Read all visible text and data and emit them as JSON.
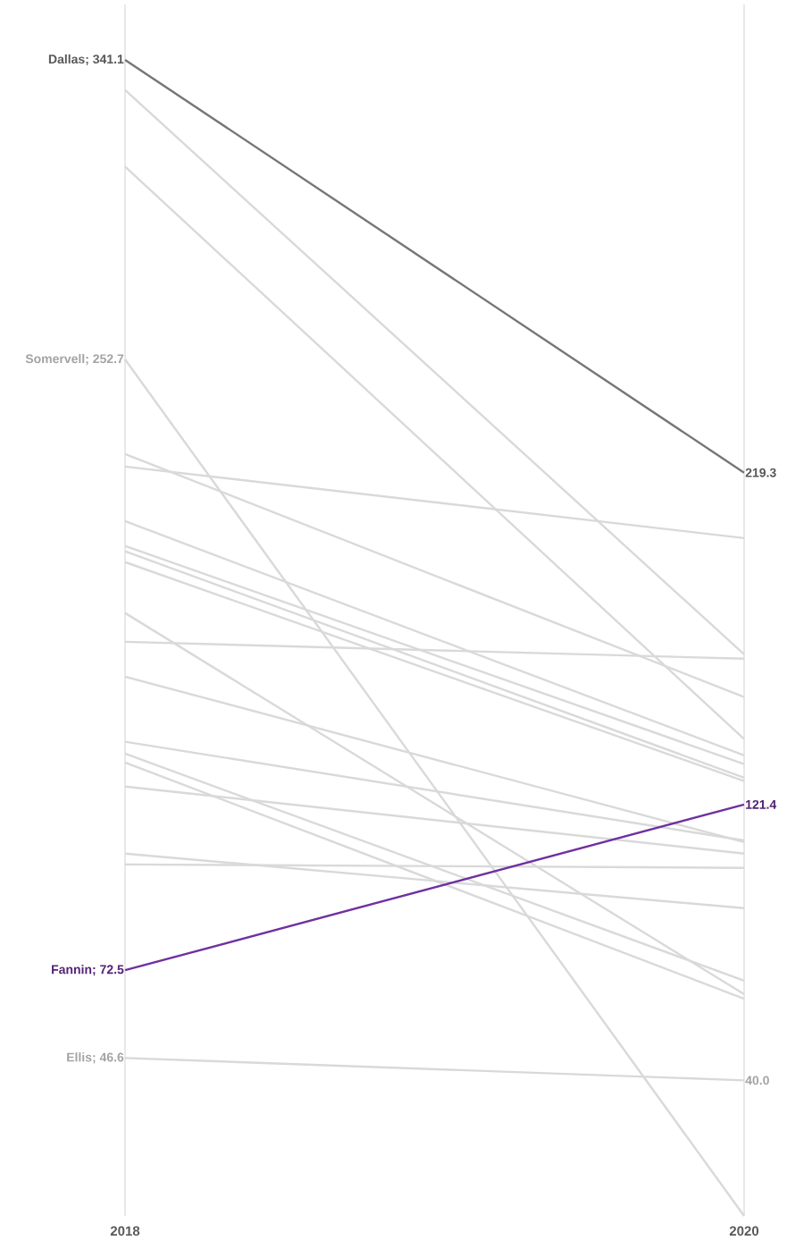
{
  "chart_data": {
    "type": "line",
    "categories": [
      "2018",
      "2020"
    ],
    "grid": "x",
    "series": [
      {
        "color": "#767676",
        "values": [
          341.1,
          219.3
        ],
        "value_labels": [
          "Dallas; 341.1",
          "219.3"
        ]
      },
      {
        "color": "#d9d9d9",
        "values": [
          332.2,
          165.7
        ]
      },
      {
        "color": "#d9d9d9",
        "values": [
          309.6,
          140.7
        ]
      },
      {
        "color": "#d9d9d9",
        "values": [
          252.7,
          0
        ],
        "value_labels": [
          "Somervell; 252.7",
          null
        ]
      },
      {
        "color": "#d9d9d9",
        "values": [
          224.8,
          153.1
        ]
      },
      {
        "color": "#d9d9d9",
        "values": [
          221.1,
          200.0
        ]
      },
      {
        "color": "#d9d9d9",
        "values": [
          205.0,
          135.9
        ]
      },
      {
        "color": "#d9d9d9",
        "values": [
          197.7,
          133.3
        ]
      },
      {
        "color": "#d9d9d9",
        "values": [
          196.1,
          129.3
        ]
      },
      {
        "color": "#d9d9d9",
        "values": [
          192.9,
          128.3
        ]
      },
      {
        "color": "#d9d9d9",
        "values": [
          177.9,
          65.4
        ]
      },
      {
        "color": "#d9d9d9",
        "values": [
          169.4,
          164.4
        ]
      },
      {
        "color": "#d9d9d9",
        "values": [
          159.1,
          110.3
        ]
      },
      {
        "color": "#d9d9d9",
        "values": [
          139.9,
          110.8
        ]
      },
      {
        "color": "#d9d9d9",
        "values": [
          136.4,
          69.4
        ]
      },
      {
        "color": "#d9d9d9",
        "values": [
          133.8,
          64.1
        ]
      },
      {
        "color": "#d9d9d9",
        "values": [
          126.7,
          106.9
        ]
      },
      {
        "color": "#d9d9d9",
        "values": [
          106.9,
          90.8
        ]
      },
      {
        "color": "#d9d9d9",
        "values": [
          103.7,
          102.7
        ]
      },
      {
        "color": "#d9d9d9",
        "values": [
          46.6,
          40.0
        ],
        "value_labels": [
          "Ellis; 46.6",
          "40.0"
        ]
      },
      {
        "color": "#7030a0",
        "values": [
          72.5,
          121.4
        ],
        "value_labels": [
          "Fannin; 72.5",
          "121.4"
        ]
      }
    ]
  }
}
